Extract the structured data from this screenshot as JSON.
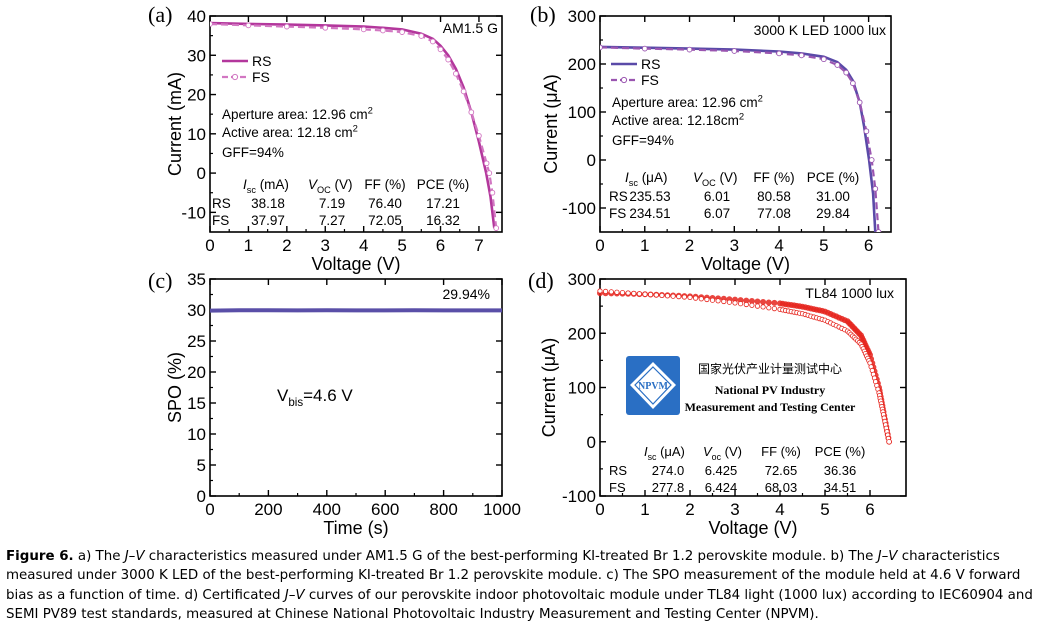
{
  "colors": {
    "rs_a": "#b3379c",
    "fs_a": "#d277c2",
    "rs_b": "#5a4aa8",
    "fs_b": "#9a55b0",
    "spo": "#5a4fa8",
    "red": "#e6251e",
    "logo": "#2a6fc4"
  },
  "panels": {
    "a": {
      "label": "(a)",
      "corner_text": "AM1.5 G",
      "legend": [
        "RS",
        "FS"
      ],
      "notes": [
        "Aperture area: 12.96 cm",
        "2",
        "Active area: 12.18 cm",
        "2",
        "GFF=94%"
      ],
      "table": {
        "headers": [
          "I",
          "sc",
          " (mA)",
          "V",
          "OC",
          " (V)",
          "FF (%)",
          "PCE (%)"
        ],
        "rows": [
          [
            "RS",
            "38.18",
            "7.19",
            "76.40",
            "17.21"
          ],
          [
            "FS",
            "37.97",
            "7.27",
            "72.05",
            "16.32"
          ]
        ]
      }
    },
    "b": {
      "label": "(b)",
      "corner_text": "3000 K LED 1000 lux",
      "legend": [
        "RS",
        "FS"
      ],
      "notes": [
        "Aperture area: 12.96 cm",
        "2",
        "Active area: 12.18cm",
        "2",
        "GFF=94%"
      ],
      "table": {
        "headers": [
          "I",
          "sc",
          " (μA)",
          "V",
          "OC",
          " (V)",
          "FF (%)",
          "PCE (%)"
        ],
        "rows": [
          [
            "RS",
            "235.53",
            "6.01",
            "80.58",
            "31.00"
          ],
          [
            "FS",
            "234.51",
            "6.07",
            "77.08",
            "29.84"
          ]
        ]
      }
    },
    "c": {
      "label": "(c)",
      "corner_text": "29.94%",
      "bias": [
        "V",
        "bis",
        "=4.6 V"
      ]
    },
    "d": {
      "label": "(d)",
      "corner_text": "TL84 1000 lux",
      "logo": {
        "text": "NPVM",
        "cn": "国家光伏产业计量测试中心",
        "en1": "National PV Industry",
        "en2": "Measurement and Testing Center"
      },
      "table": {
        "headers": [
          "I",
          "sc",
          " (μA)",
          "V",
          "oc",
          " (V)",
          "FF (%)",
          "PCE (%)"
        ],
        "rows": [
          [
            "RS",
            "274.0",
            "6.425",
            "72.65",
            "36.36"
          ],
          [
            "FS",
            "277.8",
            "6.424",
            "68.03",
            "34.51"
          ]
        ]
      }
    }
  },
  "chart_data": [
    {
      "panel": "a",
      "type": "line",
      "xlabel": "Voltage (V)",
      "ylabel": "Current (mA)",
      "xlim": [
        0,
        7.6
      ],
      "ylim": [
        -15,
        40
      ],
      "xticks": [
        "0",
        "1",
        "2",
        "3",
        "4",
        "5",
        "6",
        "7"
      ],
      "yticks": [
        "-10",
        "0",
        "10",
        "20",
        "30",
        "40"
      ],
      "series": [
        {
          "name": "RS",
          "x": [
            0,
            1,
            2,
            3,
            4,
            4.5,
            5,
            5.5,
            5.8,
            6.0,
            6.2,
            6.4,
            6.6,
            6.8,
            7.0,
            7.19,
            7.3,
            7.4
          ],
          "y": [
            38.18,
            38.0,
            37.8,
            37.6,
            37.3,
            37.0,
            36.6,
            35.5,
            34.2,
            32.4,
            30.0,
            26.5,
            21.8,
            15.5,
            8.0,
            0,
            -6,
            -14
          ]
        },
        {
          "name": "FS",
          "x": [
            0,
            1,
            2,
            3,
            4,
            4.5,
            5,
            5.5,
            5.8,
            6.0,
            6.2,
            6.4,
            6.6,
            6.8,
            7.0,
            7.2,
            7.27,
            7.35,
            7.45
          ],
          "y": [
            37.97,
            37.6,
            37.3,
            37.0,
            36.6,
            36.3,
            35.9,
            34.9,
            33.5,
            31.5,
            28.9,
            25.3,
            20.8,
            15.5,
            9.5,
            2.5,
            0,
            -5,
            -14
          ]
        }
      ]
    },
    {
      "panel": "b",
      "type": "line",
      "xlabel": "Voltage (V)",
      "ylabel": "Current (μA)",
      "xlim": [
        0,
        6.5
      ],
      "ylim": [
        -150,
        300
      ],
      "xticks": [
        "0",
        "1",
        "2",
        "3",
        "4",
        "5",
        "6"
      ],
      "yticks": [
        "-100",
        "0",
        "100",
        "200",
        "300"
      ],
      "series": [
        {
          "name": "RS",
          "x": [
            0,
            1,
            2,
            3,
            4,
            4.5,
            5,
            5.3,
            5.5,
            5.65,
            5.8,
            5.9,
            6.01,
            6.1,
            6.15
          ],
          "y": [
            235.53,
            234,
            232,
            230,
            226,
            222,
            215,
            204,
            188,
            165,
            120,
            70,
            0,
            -70,
            -150
          ]
        },
        {
          "name": "FS",
          "x": [
            0,
            1,
            2,
            3,
            4,
            4.5,
            5,
            5.3,
            5.5,
            5.65,
            5.8,
            5.95,
            6.07,
            6.15,
            6.22
          ],
          "y": [
            234.51,
            232,
            230,
            227,
            222,
            218,
            210,
            198,
            182,
            160,
            120,
            60,
            0,
            -60,
            -150
          ]
        }
      ]
    },
    {
      "panel": "c",
      "type": "line",
      "xlabel": "Time (s)",
      "ylabel": "SPO (%)",
      "xlim": [
        0,
        1000
      ],
      "ylim": [
        0,
        35
      ],
      "xticks": [
        "0",
        "200",
        "400",
        "600",
        "800",
        "1000"
      ],
      "yticks": [
        "0",
        "5",
        "10",
        "15",
        "20",
        "25",
        "30",
        "35"
      ],
      "series": [
        {
          "name": "",
          "x": [
            0,
            100,
            200,
            300,
            400,
            500,
            600,
            700,
            800,
            900,
            1000
          ],
          "y": [
            29.9,
            29.95,
            29.96,
            29.94,
            29.95,
            29.93,
            29.94,
            29.95,
            29.94,
            29.93,
            29.94
          ]
        }
      ]
    },
    {
      "panel": "d",
      "type": "scatter",
      "xlabel": "Voltage (V)",
      "ylabel": "Current (μA)",
      "xlim": [
        0,
        6.8
      ],
      "ylim": [
        -100,
        300
      ],
      "xticks": [
        "0",
        "1",
        "2",
        "3",
        "4",
        "5",
        "6"
      ],
      "yticks": [
        "-100",
        "0",
        "100",
        "200",
        "300"
      ],
      "series": [
        {
          "name": "RS",
          "x": [
            0,
            1,
            2,
            3,
            4,
            4.5,
            5,
            5.5,
            5.8,
            6.0,
            6.2,
            6.3,
            6.425
          ],
          "y": [
            274.0,
            272,
            268,
            262,
            255,
            249,
            240,
            222,
            196,
            160,
            100,
            55,
            0
          ]
        },
        {
          "name": "FS",
          "x": [
            0,
            1,
            2,
            3,
            4,
            4.5,
            5,
            5.5,
            5.8,
            6.0,
            6.2,
            6.3,
            6.424
          ],
          "y": [
            277.8,
            272,
            266,
            256,
            244,
            236,
            224,
            204,
            180,
            145,
            90,
            50,
            0
          ]
        }
      ]
    }
  ],
  "caption": {
    "label": "Figure 6.",
    "parts": [
      " a) The ",
      "J–V",
      " characteristics measured under AM1.5 G of the best-performing KI-treated Br 1.2 perovskite module. b) The ",
      "J–V",
      " characteristics measured under 3000 K LED of the best-performing KI-treated Br 1.2 perovskite module. c) The SPO measurement of the module held at 4.6 V forward bias as a function of time. d) Certificated ",
      "J–V",
      " curves of our perovskite indoor photovoltaic module under TL84 light (1000 lux) according to IEC60904 and SEMI PV89 test standards, measured at Chinese National Photovoltaic Industry Measurement and Testing Center (NPVM)."
    ]
  }
}
